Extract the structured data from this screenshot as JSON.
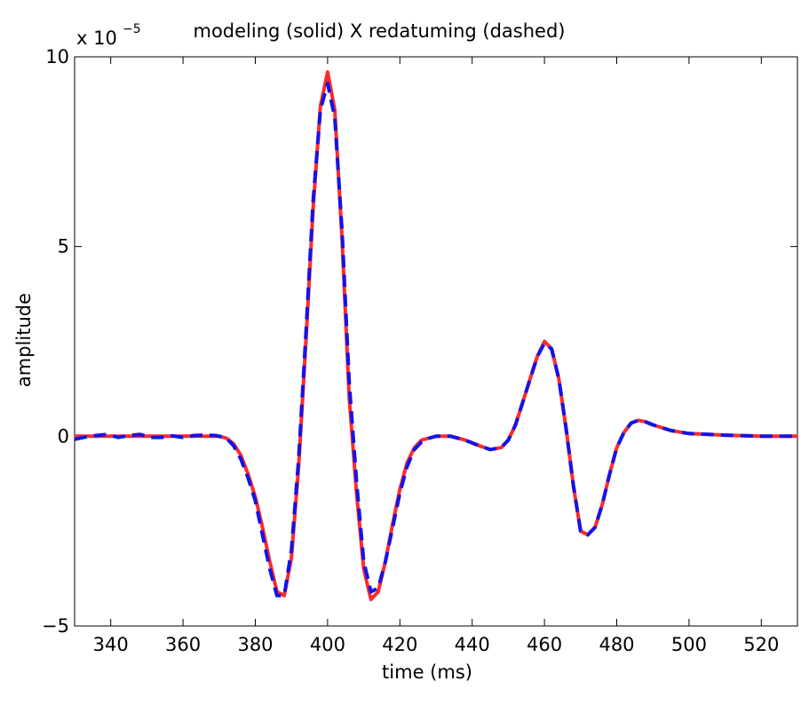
{
  "chart_data": {
    "type": "line",
    "title": "modeling (solid) X redatuming (dashed)",
    "xlabel": "time (ms)",
    "ylabel": "amplitude",
    "y_multiplier": {
      "base": "x 10",
      "exponent": "−5"
    },
    "xlim": [
      330,
      530
    ],
    "ylim": [
      -5,
      10
    ],
    "xticks": [
      340,
      360,
      380,
      400,
      420,
      440,
      460,
      480,
      500,
      520
    ],
    "yticks": [
      -5,
      0,
      5,
      10
    ],
    "ytick_labels": [
      "−5",
      "0",
      "5",
      "10"
    ],
    "grid": false,
    "series": [
      {
        "style": "solid",
        "color": "#ff2a2a",
        "x": [
          330,
          340,
          350,
          360,
          365,
          370,
          372,
          374,
          376,
          378,
          380,
          382,
          384,
          386,
          388,
          390,
          392,
          394,
          396,
          398,
          400,
          402,
          404,
          406,
          408,
          410,
          412,
          414,
          416,
          418,
          420,
          422,
          424,
          426,
          428,
          430,
          434,
          438,
          442,
          445,
          448,
          450,
          452,
          454,
          456,
          458,
          460,
          462,
          464,
          466,
          468,
          470,
          472,
          474,
          476,
          478,
          480,
          482,
          484,
          486,
          488,
          490,
          495,
          500,
          510,
          520,
          530
        ],
        "y": [
          0,
          0,
          0,
          0,
          0,
          0,
          -0.05,
          -0.2,
          -0.5,
          -1.0,
          -1.6,
          -2.4,
          -3.3,
          -4.1,
          -4.2,
          -3.2,
          -0.8,
          2.5,
          6.0,
          8.7,
          9.6,
          8.6,
          5.2,
          1.0,
          -1.5,
          -3.5,
          -4.3,
          -4.1,
          -3.3,
          -2.3,
          -1.4,
          -0.7,
          -0.3,
          -0.1,
          -0.05,
          0,
          0,
          -0.1,
          -0.25,
          -0.35,
          -0.3,
          -0.1,
          0.3,
          0.9,
          1.5,
          2.1,
          2.5,
          2.3,
          1.5,
          0.2,
          -1.3,
          -2.5,
          -2.6,
          -2.4,
          -1.8,
          -1.0,
          -0.3,
          0.1,
          0.35,
          0.42,
          0.38,
          0.3,
          0.15,
          0.07,
          0.03,
          0,
          0
        ]
      },
      {
        "style": "dashed",
        "color": "#1414e6",
        "x": [
          330,
          333,
          336,
          339,
          342,
          345,
          348,
          351,
          354,
          357,
          360,
          363,
          366,
          369,
          370,
          372,
          374,
          376,
          378,
          380,
          382,
          384,
          386,
          388,
          390,
          392,
          394,
          396,
          398,
          400,
          402,
          404,
          406,
          408,
          410,
          412,
          414,
          416,
          418,
          420,
          422,
          424,
          426,
          428,
          430,
          434,
          438,
          442,
          445,
          448,
          450,
          452,
          454,
          456,
          458,
          460,
          462,
          464,
          466,
          468,
          470,
          472,
          474,
          476,
          478,
          480,
          482,
          484,
          486,
          488,
          490,
          495,
          500,
          510,
          520,
          530
        ],
        "y": [
          -0.08,
          -0.02,
          0.02,
          0.05,
          -0.03,
          0.02,
          0.05,
          -0.03,
          -0.03,
          0.01,
          -0.03,
          0.02,
          0.03,
          0.02,
          0,
          -0.05,
          -0.25,
          -0.6,
          -1.1,
          -1.7,
          -2.6,
          -3.5,
          -4.2,
          -4.2,
          -3.0,
          -0.6,
          2.7,
          6.2,
          8.6,
          9.3,
          8.4,
          5.4,
          1.4,
          -1.2,
          -3.3,
          -4.1,
          -4.0,
          -3.3,
          -2.4,
          -1.5,
          -0.8,
          -0.35,
          -0.15,
          -0.05,
          0,
          0,
          -0.1,
          -0.25,
          -0.35,
          -0.3,
          -0.1,
          0.3,
          0.9,
          1.5,
          2.1,
          2.45,
          2.3,
          1.5,
          0.2,
          -1.3,
          -2.5,
          -2.6,
          -2.4,
          -1.8,
          -1.0,
          -0.3,
          0.1,
          0.35,
          0.42,
          0.38,
          0.3,
          0.15,
          0.07,
          0.03,
          0,
          0
        ]
      }
    ]
  }
}
